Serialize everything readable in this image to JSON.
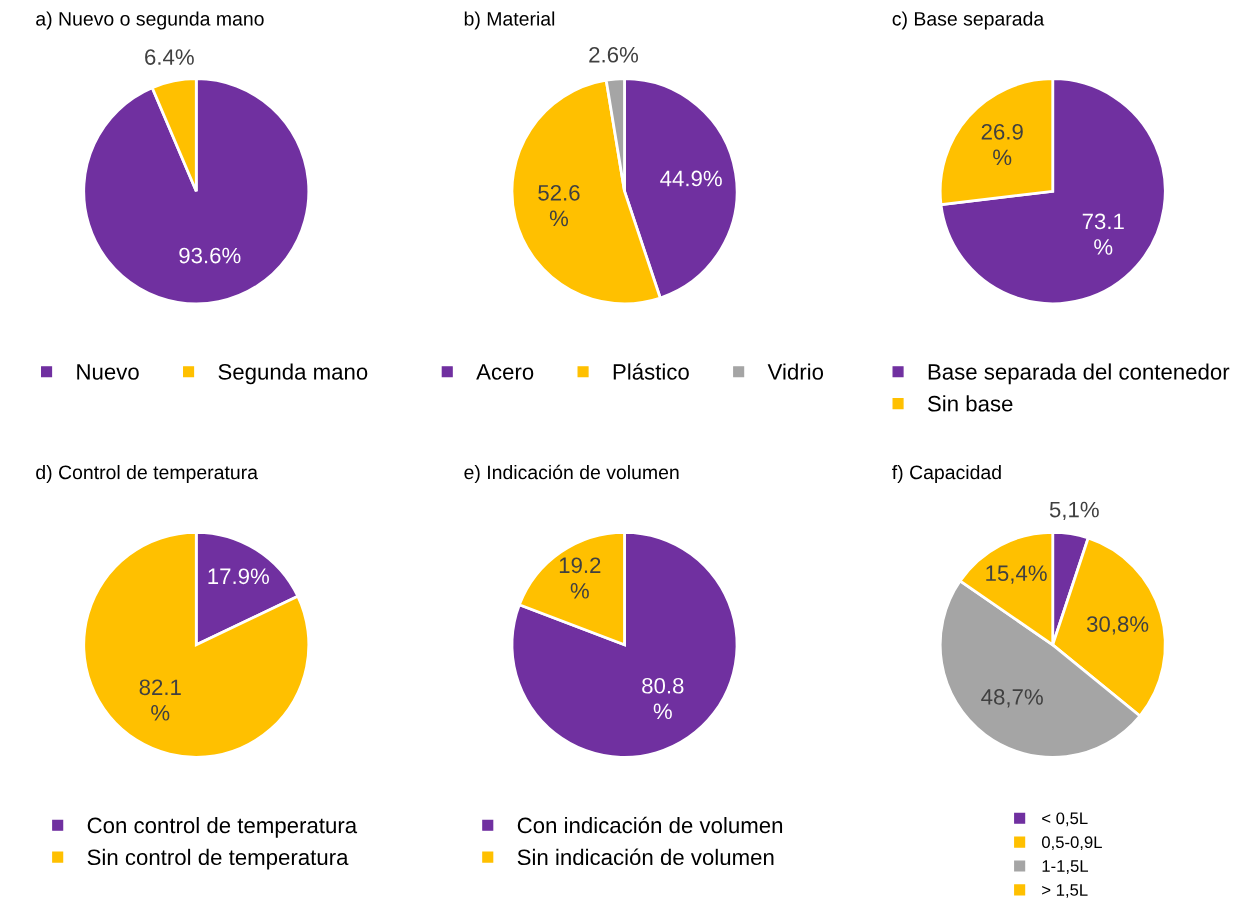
{
  "chart_data": [
    {
      "type": "pie",
      "title": "a) Nuevo o segunda mano",
      "categories": [
        "Nuevo",
        "Segunda mano"
      ],
      "values": [
        93.6,
        6.4
      ],
      "colors": [
        "#7030a0",
        "#ffc000"
      ],
      "value_labels": [
        "93.6%",
        "6.4%"
      ],
      "legend": "bottom"
    },
    {
      "type": "pie",
      "title": "b) Material",
      "categories": [
        "Acero",
        "Plástico",
        "Vidrio"
      ],
      "values": [
        44.9,
        52.6,
        2.6
      ],
      "colors": [
        "#7030a0",
        "#ffc000",
        "#a5a5a5"
      ],
      "value_labels": [
        "44.9%",
        "52.6 %",
        "2.6%"
      ],
      "legend": "bottom"
    },
    {
      "type": "pie",
      "title": "c) Base separada",
      "categories": [
        "Base separada del contenedor",
        "Sin base"
      ],
      "values": [
        73.1,
        26.9
      ],
      "colors": [
        "#7030a0",
        "#ffc000"
      ],
      "value_labels": [
        "73.1 %",
        "26.9 %"
      ],
      "legend": "bottom"
    },
    {
      "type": "pie",
      "title": "d) Control de temperatura",
      "categories": [
        "Con control de temperatura",
        "Sin control de temperatura"
      ],
      "values": [
        17.9,
        82.1
      ],
      "colors": [
        "#7030a0",
        "#ffc000"
      ],
      "value_labels": [
        "17.9%",
        "82.1 %"
      ],
      "legend": "bottom"
    },
    {
      "type": "pie",
      "title": "e) Indicación de volumen",
      "categories": [
        "Con indicación de volumen",
        "Sin indicación de volumen"
      ],
      "values": [
        80.8,
        19.2
      ],
      "colors": [
        "#7030a0",
        "#ffc000"
      ],
      "value_labels": [
        "80.8 %",
        "19.2 %"
      ],
      "legend": "bottom"
    },
    {
      "type": "pie",
      "title": "f) Capacidad",
      "categories": [
        "< 0,5L",
        "0,5-0,9L",
        "1-1,5L",
        "> 1,5L"
      ],
      "values": [
        5.1,
        30.8,
        48.7,
        15.4
      ],
      "colors": [
        "#7030a0",
        "#ffc000",
        "#a5a5a5",
        "#ffc000"
      ],
      "value_labels": [
        "5,1%",
        "30,8%",
        "48,7%",
        "15,4%"
      ],
      "legend": "bottom"
    }
  ]
}
